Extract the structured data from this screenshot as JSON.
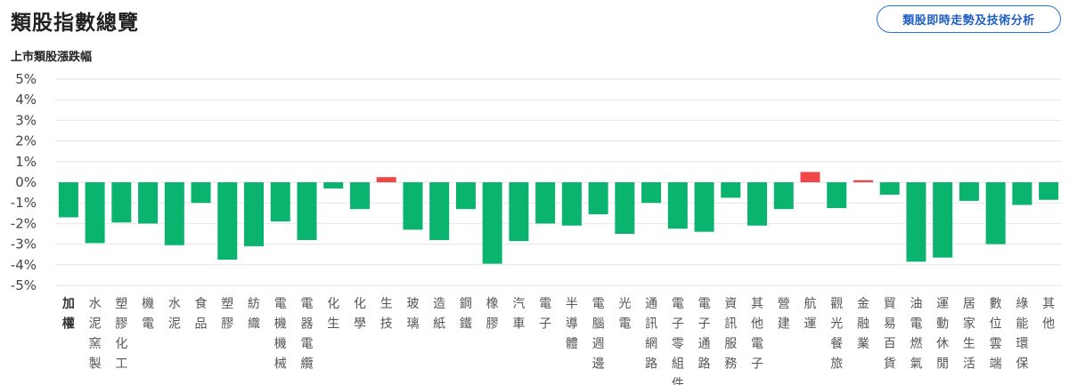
{
  "header": {
    "title": "類股指數總覽",
    "action_button": "類股即時走勢及技術分析"
  },
  "colors": {
    "down": "#0ab36e",
    "up": "#f04848",
    "grid": "#e6e6e6",
    "accent": "#2a6fd6"
  },
  "chart_data": {
    "type": "bar",
    "title": "上市類股漲跌幅",
    "xlabel": "",
    "ylabel": "",
    "ylim": [
      -5,
      5
    ],
    "y_ticks": [
      "5%",
      "4%",
      "3%",
      "2%",
      "1%",
      "0%",
      "-1%",
      "-2%",
      "-3%",
      "-4%",
      "-5%"
    ],
    "grid": true,
    "categories": [
      "加權",
      "水泥窯製",
      "塑膠化工",
      "機電",
      "水泥",
      "食品",
      "塑膠",
      "紡織",
      "電機機械",
      "電器電纜",
      "化生",
      "化學",
      "生技",
      "玻璃",
      "造紙",
      "鋼鐵",
      "橡膠",
      "汽車",
      "電子",
      "半導體",
      "電腦週邊",
      "光電",
      "通訊網路",
      "電子零組件",
      "電子通路",
      "資訊服務",
      "其他電子",
      "營建",
      "航運",
      "觀光餐旅",
      "金融業",
      "貿易百貨",
      "油電燃氣",
      "運動休閒",
      "居家生活",
      "數位雲端",
      "綠能環保",
      "其他"
    ],
    "values": [
      -1.7,
      -2.95,
      -1.95,
      -2.0,
      -3.05,
      -1.0,
      -3.75,
      -3.1,
      -1.9,
      -2.8,
      -0.3,
      -1.3,
      0.25,
      -2.3,
      -2.8,
      -1.3,
      -3.95,
      -2.85,
      -2.0,
      -2.1,
      -1.55,
      -2.5,
      -1.0,
      -2.25,
      -2.4,
      -0.75,
      -2.1,
      -1.3,
      0.5,
      -1.25,
      0.1,
      -0.6,
      -3.85,
      -3.65,
      -0.9,
      -3.0,
      -1.1,
      -0.85
    ]
  }
}
